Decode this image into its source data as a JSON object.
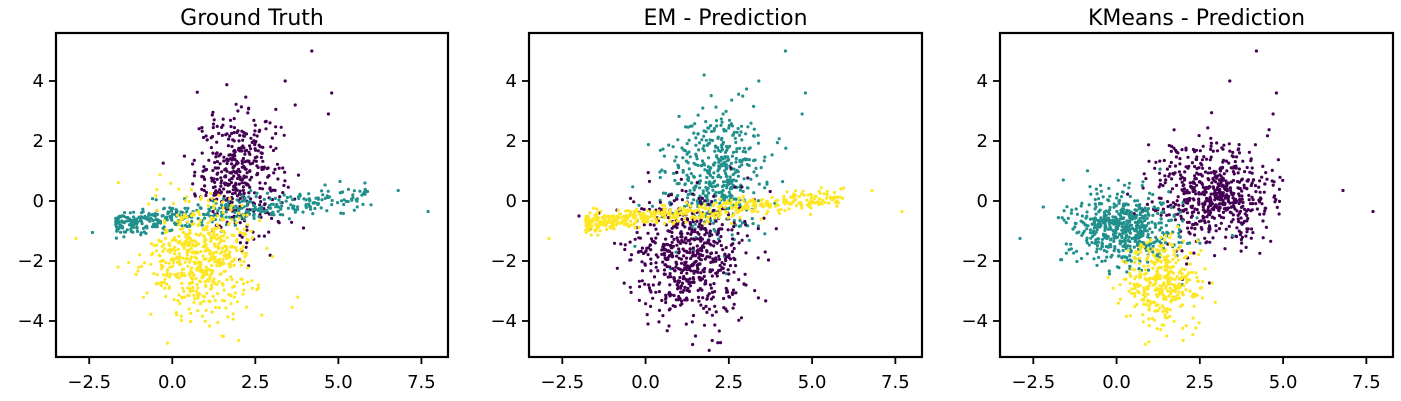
{
  "colors": {
    "cluster_a": "#440154",
    "cluster_b": "#21908c",
    "cluster_c": "#fde725"
  },
  "chart_data": [
    {
      "type": "scatter",
      "title": "Ground Truth",
      "xlim": [
        -3.5,
        8.3
      ],
      "ylim": [
        -5.2,
        5.6
      ],
      "xticks": [
        -2.5,
        0.0,
        2.5,
        5.0,
        7.5
      ],
      "xtick_labels": [
        "−2.5",
        "0.0",
        "2.5",
        "5.0",
        "7.5"
      ],
      "yticks": [
        -4,
        -2,
        0,
        2,
        4
      ],
      "ytick_labels": [
        "−4",
        "−2",
        "0",
        "2",
        "4"
      ],
      "grid": false,
      "series": [
        {
          "color": "#440154",
          "cluster": "upper",
          "center": [
            2.0,
            0.9
          ],
          "spread": [
            0.65,
            1.0
          ],
          "count": 420,
          "extra_points": [
            [
              4.2,
              5.0
            ],
            [
              3.4,
              4.0
            ],
            [
              4.8,
              3.6
            ],
            [
              4.7,
              2.9
            ],
            [
              3.7,
              3.2
            ]
          ]
        },
        {
          "color": "#21908c",
          "cluster": "band",
          "x_range": [
            -1.7,
            6.0
          ],
          "line": [
            0.12,
            -0.55
          ],
          "spread": 0.22,
          "count": 420,
          "extra_points": [
            [
              6.8,
              0.35
            ],
            [
              7.7,
              -0.35
            ],
            [
              -2.4,
              -1.05
            ]
          ]
        },
        {
          "color": "#fde725",
          "cluster": "lower",
          "center": [
            0.9,
            -1.9
          ],
          "spread": [
            0.8,
            0.95
          ],
          "count": 560,
          "extra_points": [
            [
              -2.9,
              -1.25
            ],
            [
              2.0,
              -4.65
            ],
            [
              1.5,
              -4.5
            ]
          ]
        }
      ]
    },
    {
      "type": "scatter",
      "title": "EM - Prediction",
      "xlim": [
        -3.5,
        8.3
      ],
      "ylim": [
        -5.2,
        5.6
      ],
      "xticks": [
        -2.5,
        0.0,
        2.5,
        5.0,
        7.5
      ],
      "xtick_labels": [
        "−2.5",
        "0.0",
        "2.5",
        "5.0",
        "7.5"
      ],
      "yticks": [
        -4,
        -2,
        0,
        2,
        4
      ],
      "ytick_labels": [
        "−4",
        "−2",
        "0",
        "2",
        "4"
      ],
      "grid": false,
      "series": [
        {
          "color": "#21908c",
          "cluster": "upper",
          "center": [
            2.1,
            0.9
          ],
          "spread": [
            0.75,
            1.05
          ],
          "count": 480,
          "extra_points": [
            [
              4.2,
              5.0
            ],
            [
              3.4,
              4.0
            ],
            [
              4.8,
              3.6
            ],
            [
              4.7,
              2.9
            ]
          ]
        },
        {
          "color": "#440154",
          "cluster": "lower",
          "center": [
            1.3,
            -1.9
          ],
          "spread": [
            0.9,
            1.05
          ],
          "count": 620,
          "extra_points": [
            [
              2.0,
              -4.65
            ],
            [
              1.5,
              -4.5
            ],
            [
              -1.4,
              -0.4
            ],
            [
              -2.0,
              -0.5
            ]
          ]
        },
        {
          "color": "#fde725",
          "cluster": "band",
          "x_range": [
            -1.8,
            6.0
          ],
          "line": [
            0.12,
            -0.55
          ],
          "spread": 0.16,
          "count": 520,
          "extra_points": [
            [
              -2.9,
              -1.25
            ],
            [
              6.8,
              0.35
            ],
            [
              7.7,
              -0.35
            ]
          ]
        }
      ]
    },
    {
      "type": "scatter",
      "title": "KMeans - Prediction",
      "xlim": [
        -3.5,
        8.3
      ],
      "ylim": [
        -5.2,
        5.6
      ],
      "xticks": [
        -2.5,
        0.0,
        2.5,
        5.0,
        7.5
      ],
      "xtick_labels": [
        "−2.5",
        "0.0",
        "2.5",
        "5.0",
        "7.5"
      ],
      "yticks": [
        -4,
        -2,
        0,
        2,
        4
      ],
      "ytick_labels": [
        "−4",
        "−2",
        "0",
        "2",
        "4"
      ],
      "grid": false,
      "series": [
        {
          "color": "#440154",
          "cluster": "right",
          "center": [
            2.9,
            0.2
          ],
          "spread": [
            0.9,
            0.85
          ],
          "count": 600,
          "extra_points": [
            [
              4.2,
              5.0
            ],
            [
              3.4,
              4.0
            ],
            [
              4.8,
              3.6
            ],
            [
              4.7,
              2.9
            ],
            [
              6.8,
              0.35
            ],
            [
              7.7,
              -0.35
            ]
          ]
        },
        {
          "color": "#21908c",
          "cluster": "left",
          "center": [
            0.2,
            -0.9
          ],
          "spread": [
            0.8,
            0.6
          ],
          "count": 560,
          "extra_points": [
            [
              -2.9,
              -1.25
            ],
            [
              -2.2,
              -0.2
            ],
            [
              -1.6,
              0.7
            ]
          ]
        },
        {
          "color": "#fde725",
          "cluster": "lower",
          "center": [
            1.4,
            -2.7
          ],
          "spread": [
            0.55,
            0.75
          ],
          "count": 360,
          "extra_points": [
            [
              2.0,
              -4.65
            ],
            [
              1.5,
              -4.5
            ]
          ]
        }
      ]
    }
  ]
}
